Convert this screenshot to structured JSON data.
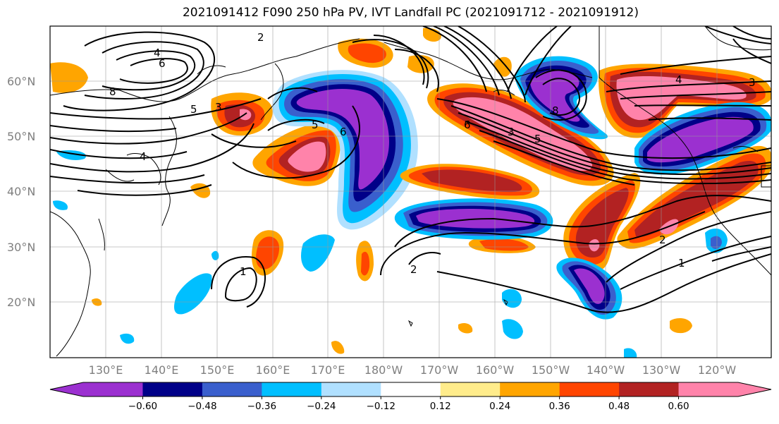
{
  "title": "2021091412 F090 250 hPa PV, IVT Landfall PC (2021091712 - 2021091912)",
  "lat_labels": [
    "60°N",
    "50°N",
    "40°N",
    "30°N",
    "20°N"
  ],
  "lon_labels": [
    "130°E",
    "140°E",
    "150°E",
    "160°E",
    "170°E",
    "180°W",
    "170°W",
    "160°W",
    "150°W",
    "140°W",
    "130°W",
    "120°W"
  ],
  "colorbar": {
    "colors": [
      "#9b30d0",
      "#000088",
      "#3a5fcd",
      "#00bfff",
      "#b0e0ff",
      "#ffffff",
      "#ffec8b",
      "#ffa500",
      "#ff4500",
      "#b22222",
      "#ff83aa"
    ],
    "tick_labels": [
      "−0.60",
      "−0.48",
      "−0.36",
      "−0.24",
      "−0.12",
      "0.12",
      "0.24",
      "0.36",
      "0.48",
      "0.60"
    ]
  },
  "contour_labels": [
    "2",
    "4",
    "6",
    "8",
    "5",
    "3",
    "4",
    "5",
    "6",
    "3",
    "5",
    "8",
    "6",
    "4",
    "3",
    "2",
    "1",
    "2",
    "1"
  ]
}
